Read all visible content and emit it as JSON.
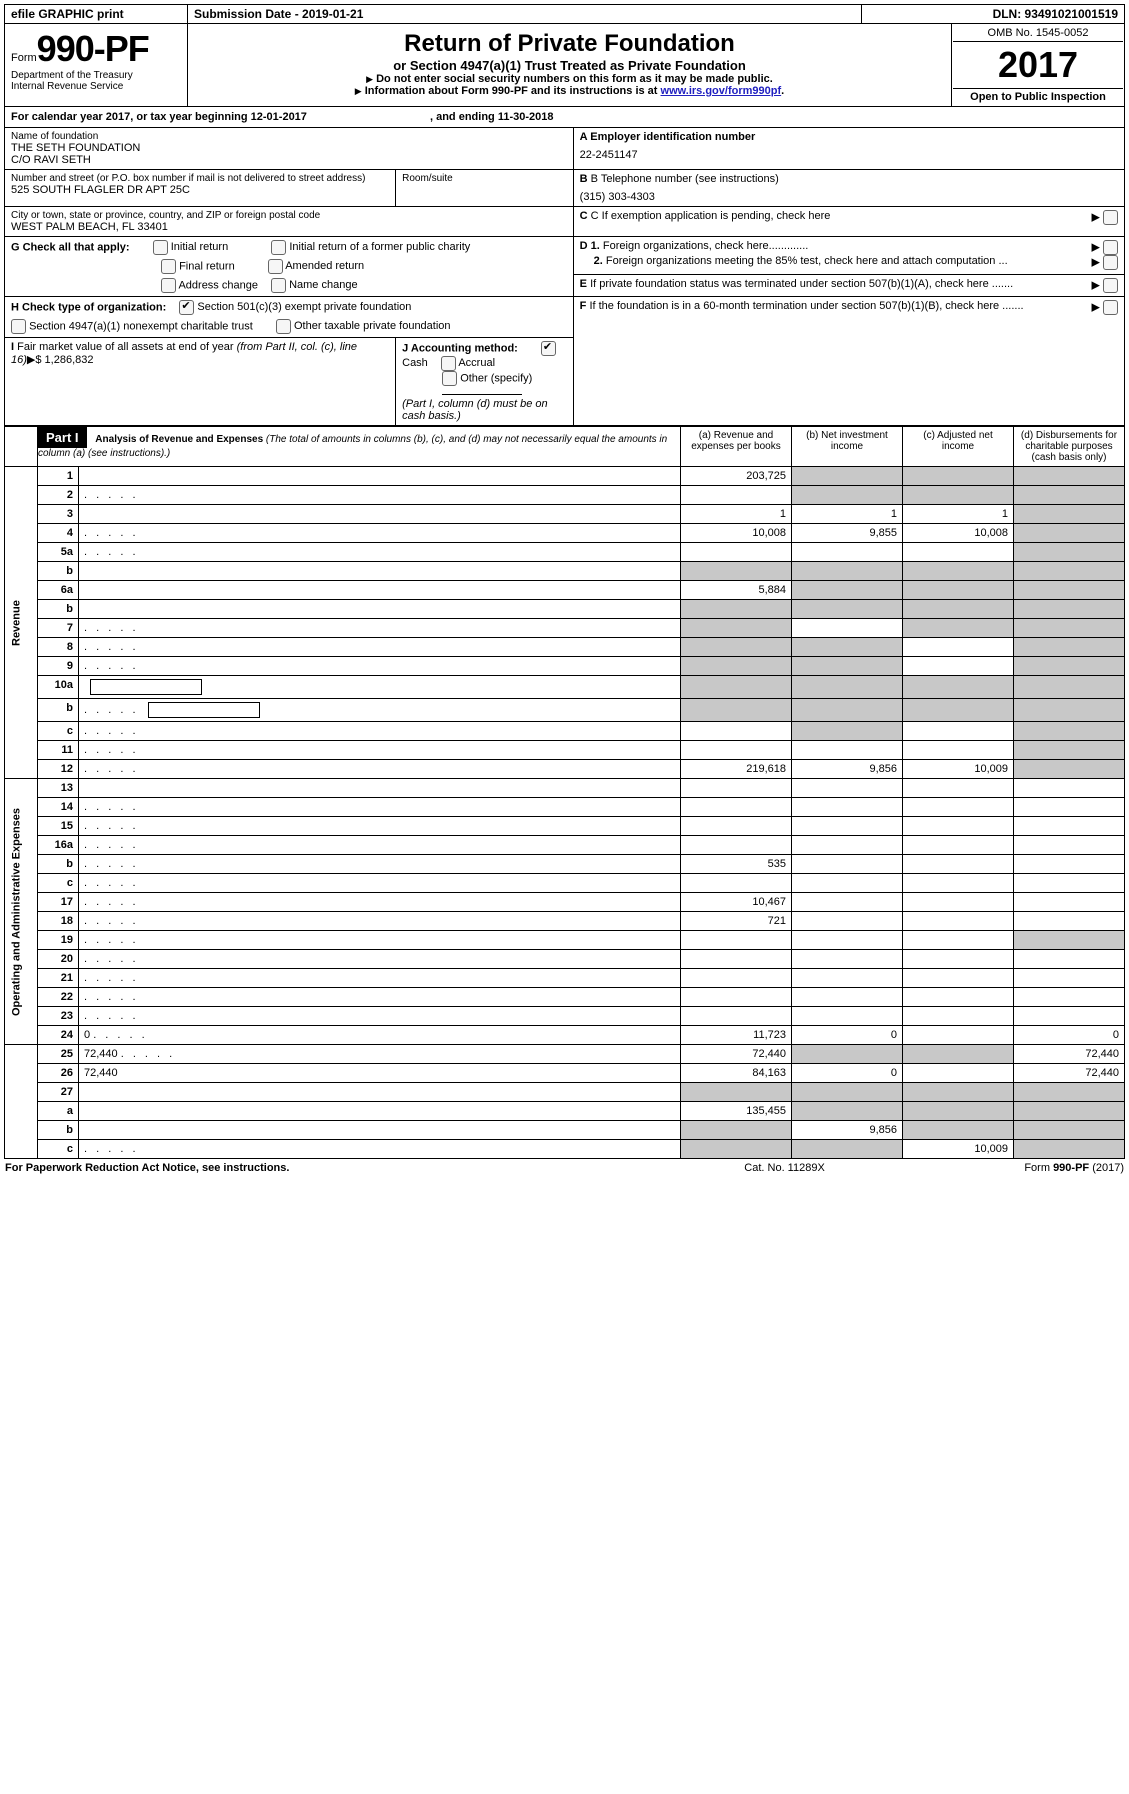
{
  "topbar": {
    "efile": "efile GRAPHIC print",
    "submission_label": "Submission Date - 2019-01-21",
    "dln_label": "DLN: 93491021001519"
  },
  "header": {
    "form_prefix": "Form",
    "form_number": "990-PF",
    "dept1": "Department of the Treasury",
    "dept2": "Internal Revenue Service",
    "title": "Return of Private Foundation",
    "subtitle": "or Section 4947(a)(1) Trust Treated as Private Foundation",
    "instr1": "Do not enter social security numbers on this form as it may be made public.",
    "instr2_pre": "Information about Form 990-PF and its instructions is at ",
    "instr2_link": "www.irs.gov/form990pf",
    "omb": "OMB No. 1545-0052",
    "year": "2017",
    "open": "Open to Public Inspection"
  },
  "cal": {
    "line": "For calendar year 2017, or tax year beginning 12-01-2017",
    "ending": ", and ending 11-30-2018"
  },
  "a": {
    "name_label": "Name of foundation",
    "name1": "THE SETH FOUNDATION",
    "name2": "C/O RAVI SETH",
    "addr_label": "Number and street (or P.O. box number if mail is not delivered to street address)",
    "room_label": "Room/suite",
    "addr": "525 SOUTH FLAGLER DR APT 25C",
    "city_label": "City or town, state or province, country, and ZIP or foreign postal code",
    "city": "WEST PALM BEACH, FL  33401",
    "ein_label": "A Employer identification number",
    "ein": "22-2451147",
    "tel_label": "B Telephone number (see instructions)",
    "tel": "(315) 303-4303",
    "c_label": "C If exemption application is pending, check here",
    "d1": "D 1. Foreign organizations, check here.............",
    "d2": "2. Foreign organizations meeting the 85% test, check here and attach computation ...",
    "e": "E  If private foundation status was terminated under section 507(b)(1)(A), check here .......",
    "f": "F  If the foundation is in a 60-month termination under section 507(b)(1)(B), check here .......",
    "g_label": "G Check all that apply:",
    "g_opts": [
      "Initial return",
      "Initial return of a former public charity",
      "Final return",
      "Amended return",
      "Address change",
      "Name change"
    ],
    "h_label": "H Check type of organization:",
    "h_opts": [
      "Section 501(c)(3) exempt private foundation",
      "Section 4947(a)(1) nonexempt charitable trust",
      "Other taxable private foundation"
    ],
    "i_label": "I Fair market value of all assets at end of year (from Part II, col. (c), line 16)",
    "i_val": "$  1,286,832",
    "j_label": "J Accounting method:",
    "j_opts": [
      "Cash",
      "Accrual"
    ],
    "j_other": "Other (specify)",
    "j_note": "(Part I, column (d) must be on cash basis.)"
  },
  "part1": {
    "label": "Part I",
    "title": "Analysis of Revenue and Expenses",
    "note": "(The total of amounts in columns (b), (c), and (d) may not necessarily equal the amounts in column (a) (see instructions).)",
    "cols": {
      "a": "(a) Revenue and expenses per books",
      "b": "(b) Net investment income",
      "c": "(c) Adjusted net income",
      "d": "(d) Disbursements for charitable purposes (cash basis only)"
    }
  },
  "vlabels": {
    "rev": "Revenue",
    "exp": "Operating and Administrative Expenses"
  },
  "rows": [
    {
      "n": "1",
      "d": "",
      "a": "203,725",
      "b": "",
      "c": "",
      "sb": true,
      "sc": true,
      "sd": true
    },
    {
      "n": "2",
      "d": "",
      "a": "",
      "b": "",
      "c": "",
      "sb": true,
      "sc": true,
      "sd": true,
      "dotted": true
    },
    {
      "n": "3",
      "d": "",
      "a": "1",
      "b": "1",
      "c": "1",
      "sd": true
    },
    {
      "n": "4",
      "d": "",
      "a": "10,008",
      "b": "9,855",
      "c": "10,008",
      "sd": true,
      "dotted": true
    },
    {
      "n": "5a",
      "d": "",
      "a": "",
      "b": "",
      "c": "",
      "sd": true,
      "dotted": true
    },
    {
      "n": "b",
      "d": "",
      "a": "",
      "b": "",
      "c": "",
      "sa": true,
      "sb": true,
      "sc": true,
      "sd": true
    },
    {
      "n": "6a",
      "d": "",
      "a": "5,884",
      "b": "",
      "c": "",
      "sb": true,
      "sc": true,
      "sd": true
    },
    {
      "n": "b",
      "d": "",
      "a": "",
      "b": "",
      "c": "",
      "sa": true,
      "sb": true,
      "sc": true,
      "sd": true
    },
    {
      "n": "7",
      "d": "",
      "a": "",
      "b": "",
      "c": "",
      "sa": true,
      "sc": true,
      "sd": true,
      "dotted": true
    },
    {
      "n": "8",
      "d": "",
      "a": "",
      "b": "",
      "c": "",
      "sa": true,
      "sb": true,
      "sd": true,
      "dotted": true
    },
    {
      "n": "9",
      "d": "",
      "a": "",
      "b": "",
      "c": "",
      "sa": true,
      "sb": true,
      "sd": true,
      "dotted": true
    },
    {
      "n": "10a",
      "d": "",
      "a": "",
      "b": "",
      "c": "",
      "sa": true,
      "sb": true,
      "sc": true,
      "sd": true,
      "box": true
    },
    {
      "n": "b",
      "d": "",
      "a": "",
      "b": "",
      "c": "",
      "sa": true,
      "sb": true,
      "sc": true,
      "sd": true,
      "dotted": true,
      "box": true
    },
    {
      "n": "c",
      "d": "",
      "a": "",
      "b": "",
      "c": "",
      "sb": true,
      "sd": true,
      "dotted": true
    },
    {
      "n": "11",
      "d": "",
      "a": "",
      "b": "",
      "c": "",
      "sd": true,
      "dotted": true
    },
    {
      "n": "12",
      "d": "",
      "a": "219,618",
      "b": "9,856",
      "c": "10,009",
      "sd": true,
      "dotted": true
    },
    {
      "n": "13",
      "d": "",
      "a": "",
      "b": "",
      "c": ""
    },
    {
      "n": "14",
      "d": "",
      "a": "",
      "b": "",
      "c": "",
      "dotted": true
    },
    {
      "n": "15",
      "d": "",
      "a": "",
      "b": "",
      "c": "",
      "dotted": true
    },
    {
      "n": "16a",
      "d": "",
      "a": "",
      "b": "",
      "c": "",
      "dotted": true
    },
    {
      "n": "b",
      "d": "",
      "a": "535",
      "b": "",
      "c": "",
      "dotted": true
    },
    {
      "n": "c",
      "d": "",
      "a": "",
      "b": "",
      "c": "",
      "dotted": true
    },
    {
      "n": "17",
      "d": "",
      "a": "10,467",
      "b": "",
      "c": "",
      "dotted": true
    },
    {
      "n": "18",
      "d": "",
      "a": "721",
      "b": "",
      "c": "",
      "dotted": true
    },
    {
      "n": "19",
      "d": "",
      "a": "",
      "b": "",
      "c": "",
      "sd": true,
      "dotted": true
    },
    {
      "n": "20",
      "d": "",
      "a": "",
      "b": "",
      "c": "",
      "dotted": true
    },
    {
      "n": "21",
      "d": "",
      "a": "",
      "b": "",
      "c": "",
      "dotted": true
    },
    {
      "n": "22",
      "d": "",
      "a": "",
      "b": "",
      "c": "",
      "dotted": true
    },
    {
      "n": "23",
      "d": "",
      "a": "",
      "b": "",
      "c": "",
      "dotted": true
    },
    {
      "n": "24",
      "d": "0",
      "a": "11,723",
      "b": "0",
      "c": "",
      "dotted": true
    },
    {
      "n": "25",
      "d": "72,440",
      "a": "72,440",
      "b": "",
      "c": "",
      "sb": true,
      "sc": true,
      "dotted": true
    },
    {
      "n": "26",
      "d": "72,440",
      "a": "84,163",
      "b": "0",
      "c": ""
    },
    {
      "n": "27",
      "d": "",
      "a": "",
      "b": "",
      "c": "",
      "sa": true,
      "sb": true,
      "sc": true,
      "sd": true
    },
    {
      "n": "a",
      "d": "",
      "a": "135,455",
      "b": "",
      "c": "",
      "sb": true,
      "sc": true,
      "sd": true
    },
    {
      "n": "b",
      "d": "",
      "a": "",
      "b": "9,856",
      "c": "",
      "sa": true,
      "sc": true,
      "sd": true
    },
    {
      "n": "c",
      "d": "",
      "a": "",
      "b": "",
      "c": "10,009",
      "sa": true,
      "sb": true,
      "sd": true,
      "dotted": true
    }
  ],
  "footer": {
    "left": "For Paperwork Reduction Act Notice, see instructions.",
    "mid": "Cat. No. 11289X",
    "right": "Form 990-PF (2017)"
  }
}
